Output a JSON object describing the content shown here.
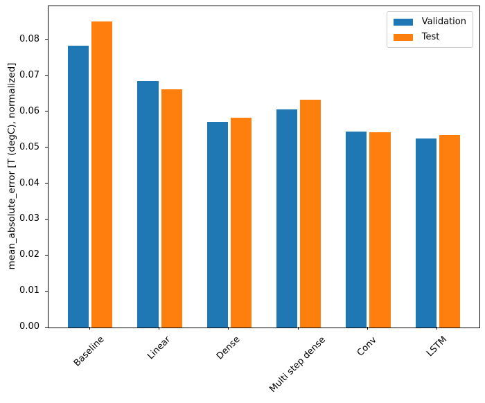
{
  "figure": {
    "background": "#ffffff",
    "spine_color": "#000000"
  },
  "chart_data": {
    "type": "bar",
    "title": "",
    "xlabel": "",
    "ylabel": "mean_absolute_error [T (degC), normalized]",
    "categories": [
      "Baseline",
      "Linear",
      "Dense",
      "Multi step dense",
      "Conv",
      "LSTM"
    ],
    "series": [
      {
        "name": "Validation",
        "color": "#1f77b4",
        "values": [
          0.0785,
          0.0687,
          0.0573,
          0.0607,
          0.0546,
          0.0526
        ]
      },
      {
        "name": "Test",
        "color": "#ff7f0e",
        "values": [
          0.0852,
          0.0663,
          0.0585,
          0.0635,
          0.0544,
          0.0536
        ]
      }
    ],
    "ylim": [
      0,
      0.0895
    ],
    "yticks": [
      "0.00",
      "0.01",
      "0.02",
      "0.03",
      "0.04",
      "0.05",
      "0.06",
      "0.07",
      "0.08"
    ],
    "xtick_rotation": 45,
    "grid": false,
    "legend": {
      "position": "upper right"
    }
  }
}
